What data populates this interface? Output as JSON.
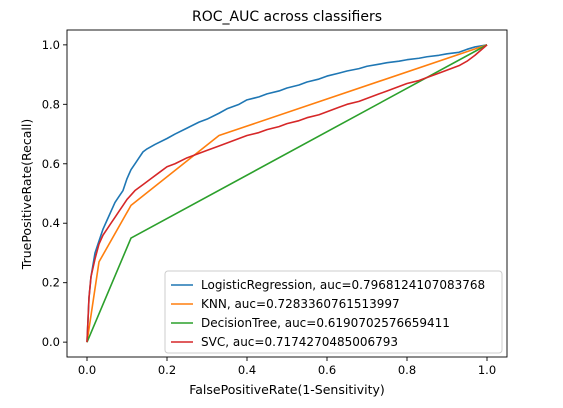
{
  "chart_data": {
    "type": "line",
    "title": "ROC_AUC across classifiers",
    "xlabel": "FalsePositiveRate(1-Sensitivity)",
    "ylabel": "TruePositiveRate(Recall)",
    "xlim": [
      -0.05,
      1.05
    ],
    "ylim": [
      -0.05,
      1.05
    ],
    "xticks": [
      "0.0",
      "0.2",
      "0.4",
      "0.6",
      "0.8",
      "1.0"
    ],
    "yticks": [
      "0.0",
      "0.2",
      "0.4",
      "0.6",
      "0.8",
      "1.0"
    ],
    "grid": false,
    "legend_position": "lower-right",
    "series": [
      {
        "name": "LogisticRegression, auc=0.7968124107083768",
        "color": "#1f77b4",
        "x": [
          0,
          0.005,
          0.01,
          0.02,
          0.03,
          0.04,
          0.05,
          0.06,
          0.07,
          0.08,
          0.09,
          0.1,
          0.11,
          0.12,
          0.13,
          0.14,
          0.15,
          0.17,
          0.2,
          0.22,
          0.25,
          0.28,
          0.3,
          0.33,
          0.35,
          0.38,
          0.4,
          0.43,
          0.45,
          0.48,
          0.5,
          0.53,
          0.55,
          0.58,
          0.6,
          0.63,
          0.65,
          0.68,
          0.7,
          0.73,
          0.75,
          0.78,
          0.8,
          0.83,
          0.85,
          0.88,
          0.9,
          0.93,
          0.95,
          0.97,
          1.0
        ],
        "y": [
          0,
          0.15,
          0.22,
          0.3,
          0.34,
          0.38,
          0.41,
          0.44,
          0.47,
          0.49,
          0.51,
          0.55,
          0.58,
          0.6,
          0.62,
          0.64,
          0.65,
          0.665,
          0.685,
          0.7,
          0.72,
          0.74,
          0.75,
          0.77,
          0.785,
          0.8,
          0.815,
          0.825,
          0.835,
          0.845,
          0.855,
          0.865,
          0.875,
          0.885,
          0.895,
          0.905,
          0.912,
          0.92,
          0.928,
          0.935,
          0.94,
          0.945,
          0.95,
          0.955,
          0.96,
          0.965,
          0.97,
          0.975,
          0.985,
          0.993,
          1.0
        ]
      },
      {
        "name": "KNN, auc=0.7283360761513997",
        "color": "#ff7f0e",
        "x": [
          0,
          0.03,
          0.11,
          0.33,
          1.0
        ],
        "y": [
          0,
          0.27,
          0.46,
          0.695,
          1.0
        ]
      },
      {
        "name": "DecisionTree, auc=0.6190702576659411",
        "color": "#2ca02c",
        "x": [
          0,
          0.11,
          1.0
        ],
        "y": [
          0,
          0.35,
          1.0
        ]
      },
      {
        "name": "SVC, auc=0.7174270485006793",
        "color": "#d62728",
        "x": [
          0,
          0.005,
          0.01,
          0.02,
          0.03,
          0.04,
          0.05,
          0.06,
          0.07,
          0.08,
          0.09,
          0.1,
          0.12,
          0.14,
          0.16,
          0.18,
          0.2,
          0.22,
          0.25,
          0.28,
          0.3,
          0.33,
          0.35,
          0.38,
          0.4,
          0.43,
          0.45,
          0.48,
          0.5,
          0.53,
          0.55,
          0.58,
          0.6,
          0.63,
          0.65,
          0.68,
          0.7,
          0.73,
          0.75,
          0.78,
          0.8,
          0.83,
          0.85,
          0.88,
          0.9,
          0.93,
          0.95,
          0.97,
          1.0
        ],
        "y": [
          0,
          0.15,
          0.22,
          0.28,
          0.33,
          0.36,
          0.38,
          0.4,
          0.42,
          0.44,
          0.46,
          0.48,
          0.51,
          0.53,
          0.55,
          0.57,
          0.59,
          0.6,
          0.62,
          0.635,
          0.645,
          0.66,
          0.67,
          0.685,
          0.695,
          0.705,
          0.715,
          0.725,
          0.735,
          0.745,
          0.755,
          0.765,
          0.775,
          0.79,
          0.8,
          0.81,
          0.82,
          0.835,
          0.845,
          0.86,
          0.87,
          0.88,
          0.89,
          0.905,
          0.915,
          0.93,
          0.945,
          0.965,
          1.0
        ]
      }
    ]
  }
}
